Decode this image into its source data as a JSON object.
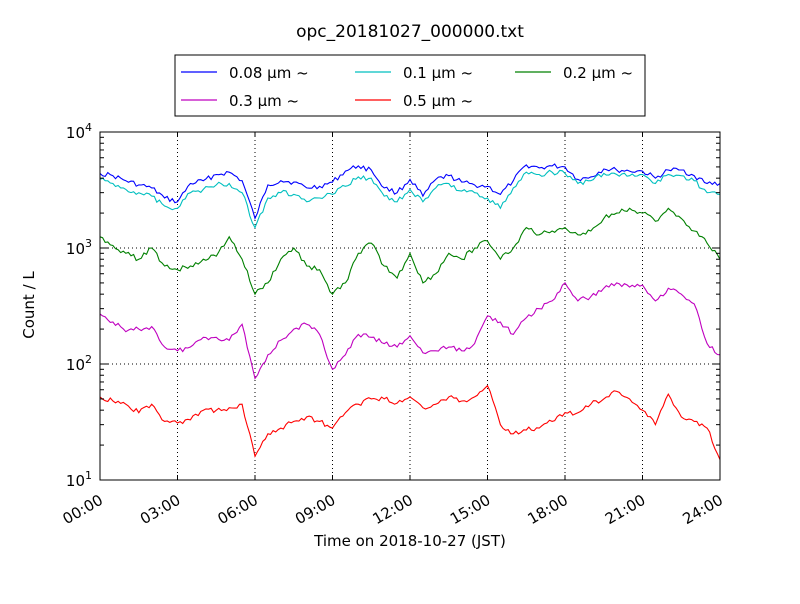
{
  "chart_data": {
    "type": "line",
    "title": "opc_20181027_000000.txt",
    "xlabel": "Time on 2018-10-27 (JST)",
    "ylabel": "Count / L",
    "y_scale": "log",
    "ylim": [
      10,
      10000
    ],
    "xlim": [
      "00:00",
      "24:00"
    ],
    "grid": true,
    "legend_position": "top-center",
    "x_ticks": [
      "00:00",
      "03:00",
      "06:00",
      "09:00",
      "12:00",
      "15:00",
      "18:00",
      "21:00",
      "24:00"
    ],
    "y_ticks": [
      {
        "value": 10,
        "base": "10",
        "exp": "1"
      },
      {
        "value": 100,
        "base": "10",
        "exp": "2"
      },
      {
        "value": 1000,
        "base": "10",
        "exp": "3"
      },
      {
        "value": 10000,
        "base": "10",
        "exp": "4"
      }
    ],
    "x": [
      "00:00",
      "00:30",
      "01:00",
      "01:30",
      "02:00",
      "02:30",
      "03:00",
      "03:30",
      "04:00",
      "04:30",
      "05:00",
      "05:30",
      "06:00",
      "06:30",
      "07:00",
      "07:30",
      "08:00",
      "08:30",
      "09:00",
      "09:30",
      "10:00",
      "10:30",
      "11:00",
      "11:30",
      "12:00",
      "12:30",
      "13:00",
      "13:30",
      "14:00",
      "14:30",
      "15:00",
      "15:30",
      "16:00",
      "16:30",
      "17:00",
      "17:30",
      "18:00",
      "18:30",
      "19:00",
      "19:30",
      "20:00",
      "20:30",
      "21:00",
      "21:30",
      "22:00",
      "22:30",
      "23:00",
      "23:30",
      "24:00"
    ],
    "series": [
      {
        "name": "0.08 µm ~",
        "color": "#0000ff",
        "values": [
          4400,
          4200,
          3800,
          3500,
          3300,
          2700,
          2500,
          3600,
          3800,
          4300,
          4500,
          3800,
          1800,
          3500,
          3800,
          3700,
          3300,
          3400,
          3700,
          4600,
          5100,
          4700,
          3300,
          3000,
          3900,
          2800,
          3900,
          4200,
          3700,
          3500,
          3400,
          2900,
          3800,
          5200,
          4900,
          5100,
          5000,
          3900,
          4100,
          4800,
          4700,
          4600,
          4600,
          4000,
          4700,
          4700,
          4200,
          3600,
          3600
        ]
      },
      {
        "name": "0.1 µm ~",
        "color": "#00bfbf",
        "values": [
          3900,
          3600,
          3200,
          3000,
          2800,
          2300,
          2200,
          3000,
          3200,
          3500,
          3600,
          3000,
          1500,
          2700,
          3000,
          2900,
          2500,
          2700,
          2900,
          3400,
          4100,
          4000,
          2800,
          2500,
          3200,
          2500,
          3300,
          3600,
          3100,
          3000,
          2700,
          2200,
          3300,
          4500,
          4300,
          4500,
          4400,
          3600,
          3800,
          4400,
          4300,
          4200,
          4300,
          3600,
          4300,
          4200,
          3800,
          3000,
          2900
        ]
      },
      {
        "name": "0.2 µm ~",
        "color": "#008000",
        "values": [
          1250,
          1050,
          900,
          800,
          1000,
          700,
          650,
          700,
          800,
          850,
          1250,
          800,
          400,
          500,
          800,
          1000,
          700,
          650,
          400,
          500,
          900,
          1100,
          700,
          550,
          900,
          500,
          600,
          900,
          800,
          1000,
          1150,
          800,
          1000,
          1500,
          1300,
          1400,
          1500,
          1300,
          1400,
          1800,
          2000,
          2200,
          2000,
          1700,
          2200,
          1800,
          1400,
          1100,
          800
        ]
      },
      {
        "name": "0.3 µm ~",
        "color": "#bf00bf",
        "values": [
          270,
          230,
          190,
          200,
          210,
          140,
          130,
          140,
          170,
          170,
          160,
          220,
          75,
          120,
          160,
          200,
          220,
          180,
          90,
          120,
          180,
          170,
          150,
          140,
          175,
          125,
          130,
          140,
          130,
          150,
          260,
          230,
          180,
          250,
          300,
          350,
          500,
          350,
          380,
          450,
          500,
          460,
          480,
          350,
          450,
          400,
          330,
          150,
          120
        ]
      },
      {
        "name": "0.5 µm ~",
        "color": "#ff0000",
        "values": [
          52,
          48,
          45,
          38,
          45,
          32,
          31,
          33,
          40,
          40,
          42,
          45,
          16,
          25,
          28,
          32,
          35,
          32,
          28,
          38,
          45,
          50,
          50,
          46,
          52,
          42,
          45,
          52,
          48,
          52,
          65,
          30,
          25,
          27,
          28,
          32,
          38,
          38,
          45,
          50,
          58,
          50,
          40,
          30,
          55,
          35,
          32,
          28,
          15
        ]
      }
    ]
  }
}
